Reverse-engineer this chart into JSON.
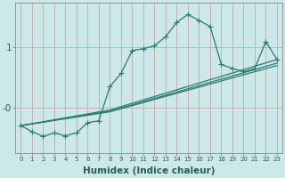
{
  "xlabel": "Humidex (Indice chaleur)",
  "bg_color": "#cce8e8",
  "line_color": "#2a7a72",
  "grid_color": "#c8a8a8",
  "xtick_labels": [
    "0",
    "1",
    "2",
    "3",
    "4",
    "5",
    "6",
    "7",
    "8",
    "9",
    "10",
    "11",
    "12",
    "13",
    "14",
    "15",
    "16",
    "17",
    "18",
    "19",
    "20",
    "21",
    "22",
    "23"
  ],
  "ylim": [
    -0.75,
    1.75
  ],
  "xlim": [
    -0.5,
    23.5
  ],
  "series1_x": [
    0,
    1,
    2,
    3,
    4,
    5,
    6,
    7,
    8,
    9,
    10,
    11,
    12,
    13,
    14,
    15,
    16,
    17,
    18,
    19,
    20,
    21,
    22,
    23
  ],
  "series1_y": [
    -0.3,
    -0.4,
    -0.48,
    -0.42,
    -0.47,
    -0.42,
    -0.25,
    -0.22,
    0.35,
    0.57,
    0.95,
    0.98,
    1.03,
    1.18,
    1.42,
    1.55,
    1.45,
    1.35,
    0.72,
    0.65,
    0.6,
    0.65,
    1.1,
    0.8
  ],
  "series2_x": [
    0,
    8,
    23
  ],
  "series2_y": [
    -0.3,
    -0.04,
    0.8
  ],
  "series3_x": [
    0,
    8,
    23
  ],
  "series3_y": [
    -0.3,
    -0.06,
    0.74
  ],
  "series4_x": [
    0,
    8,
    23
  ],
  "series4_y": [
    -0.3,
    -0.07,
    0.7
  ],
  "ytick_positions": [
    -0.0,
    1.0
  ],
  "ytick_labels": [
    "-0",
    "1"
  ],
  "marker": "+",
  "markersize": 4,
  "linewidth": 0.9
}
